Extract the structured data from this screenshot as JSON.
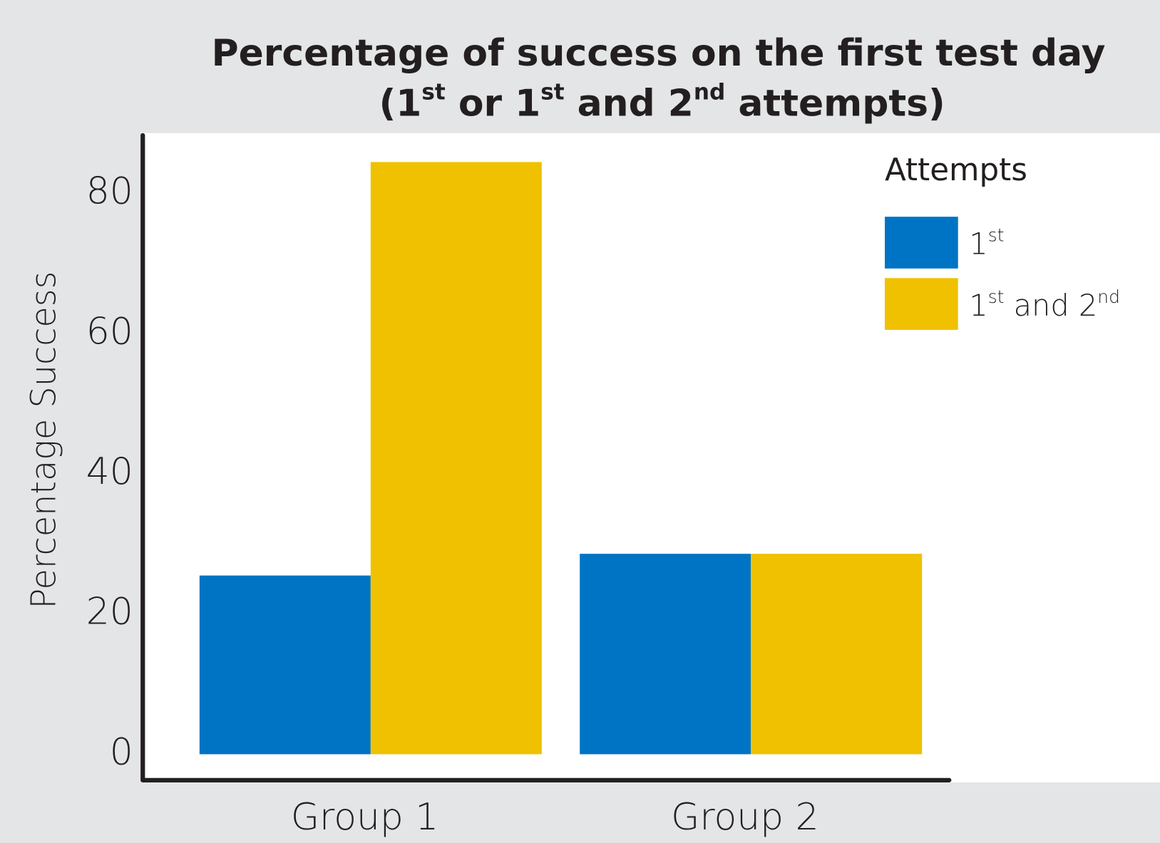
{
  "chart_data": {
    "type": "bar",
    "title": "Percentage of success on the first test day",
    "subtitle": "(1st or 1st and 2nd attempts)",
    "y_label": "Percentage Success",
    "legend_title": "Attempts",
    "legend_position": "top-right",
    "categories": [
      "Group 1",
      "Group 2"
    ],
    "series": [
      {
        "name": "1st",
        "color": "#0074c4",
        "values": [
          25.5,
          28.6
        ]
      },
      {
        "name": "1st and 2nd",
        "color": "#efc100",
        "values": [
          84.5,
          28.6
        ]
      }
    ],
    "ylim": [
      -3.7,
      88.3
    ],
    "yticks": [
      0,
      20,
      40,
      60,
      80
    ],
    "grid": false
  }
}
